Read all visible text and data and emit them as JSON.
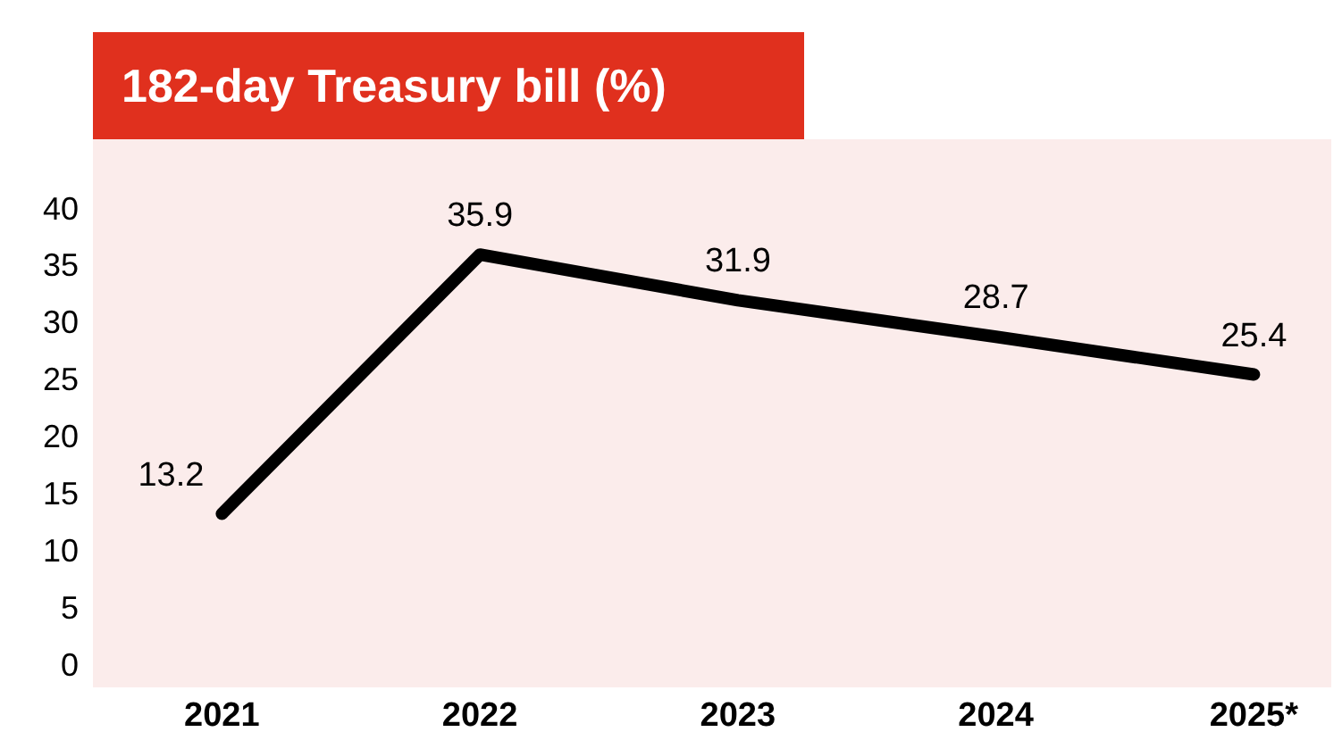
{
  "chart_data": {
    "type": "line",
    "title": "182-day Treasury bill (%)",
    "categories": [
      "2021",
      "2022",
      "2023",
      "2024",
      "2025*"
    ],
    "series": [
      {
        "color": "#000000",
        "values": [
          13.2,
          35.9,
          31.9,
          28.7,
          25.4
        ]
      }
    ],
    "ylim": [
      -2,
      46
    ],
    "yticks": [
      0,
      5,
      10,
      15,
      20,
      25,
      30,
      35,
      40
    ],
    "data_labels": true,
    "grid": false,
    "marker": "none",
    "line_style": "solid"
  }
}
